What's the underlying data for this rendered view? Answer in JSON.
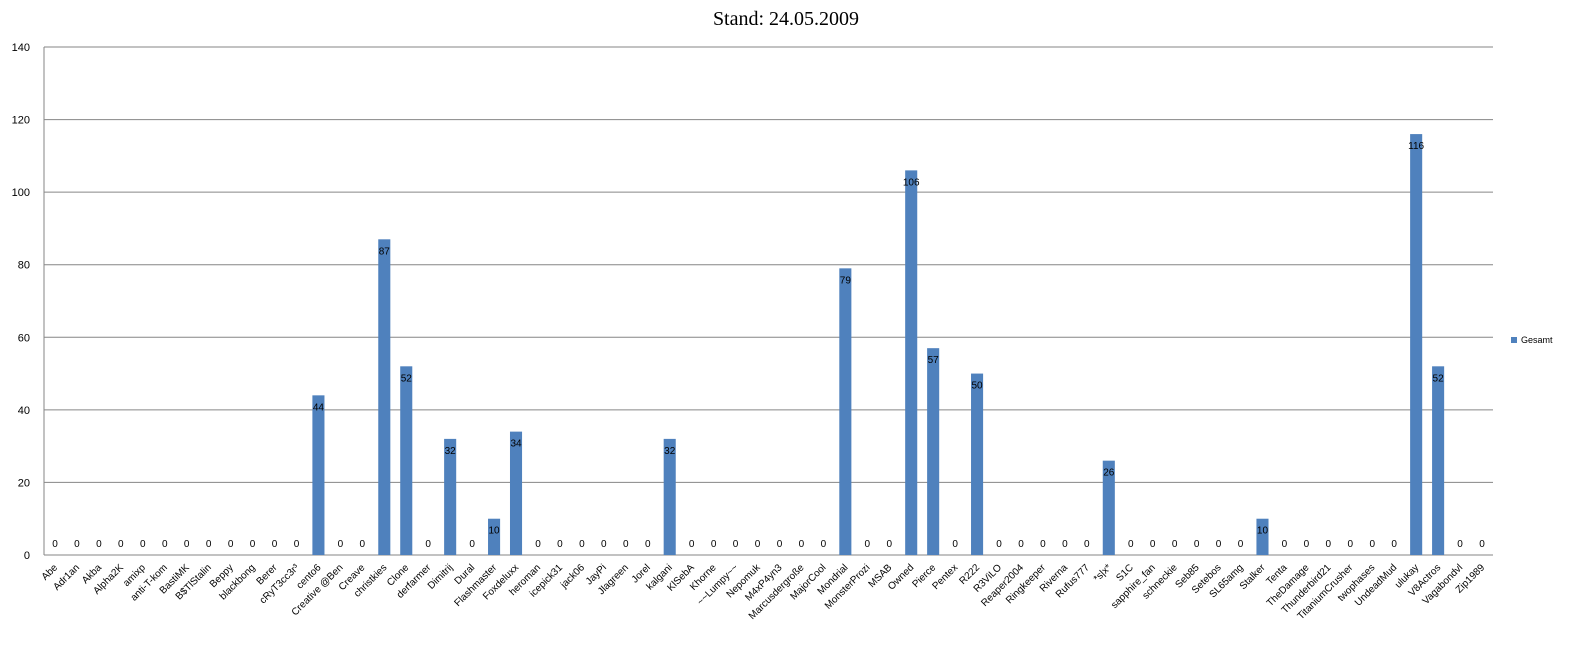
{
  "chart_data": {
    "type": "bar",
    "title": "Stand: 24.05.2009",
    "xlabel": "",
    "ylabel": "",
    "ylim": [
      0,
      140
    ],
    "yticks": [
      0,
      20,
      40,
      60,
      80,
      100,
      120,
      140
    ],
    "grid": true,
    "legend_position": "right",
    "color": "#4f81bd",
    "categories": [
      "Abe",
      "Adr1an",
      "Akba",
      "Alpha2K",
      "amixp",
      "anti-T-kom",
      "BastiMK",
      "B$TlStalin",
      "Beppy",
      "blackbong",
      "Berer",
      "cRyT3cc3r³",
      "cento6",
      "Creative @Ben",
      "Creave",
      "christkies",
      "Clone",
      "derfarmer",
      "Dimitrij",
      "Dural",
      "Flashmaster",
      "Foxdeluxx",
      "heroman",
      "icepick31",
      "jack06",
      "JayPi",
      "Jlagreen",
      "Jorel",
      "kalgani",
      "KlSebA",
      "Khorne",
      "~~Lumpy~~",
      "Nepomuk",
      "M4xP4yn3",
      "Marcusdergroße",
      "MajorCool",
      "Mondrial",
      "MonsterProzi",
      "MSAB",
      "Owned",
      "Pierce",
      "Pentex",
      "R222",
      "R3ViLO",
      "Reaper2004",
      "Ringkeeper",
      "Riverna",
      "Rufus777",
      "*s|x*",
      "S1C",
      "sapphire_fan",
      "schneckie",
      "Seb85",
      "Setebos",
      "SL65amg",
      "Stalker",
      "Tenta",
      "TheDamage",
      "Thunderbird21",
      "TitaniumCrusher",
      "twophases",
      "UndeadMud",
      "ulukay",
      "V8Actros",
      "Vagabondvl",
      "Zip1989"
    ],
    "series": [
      {
        "name": "Gesamt",
        "values": [
          0,
          0,
          0,
          0,
          0,
          0,
          0,
          0,
          0,
          0,
          0,
          0,
          44,
          0,
          0,
          87,
          52,
          0,
          32,
          0,
          10,
          34,
          0,
          0,
          0,
          0,
          0,
          0,
          32,
          0,
          0,
          0,
          0,
          0,
          0,
          0,
          79,
          0,
          0,
          106,
          57,
          0,
          50,
          0,
          0,
          0,
          0,
          0,
          26,
          0,
          0,
          0,
          0,
          0,
          0,
          10,
          0,
          0,
          0,
          0,
          0,
          0,
          116,
          52,
          0,
          0
        ]
      }
    ]
  }
}
